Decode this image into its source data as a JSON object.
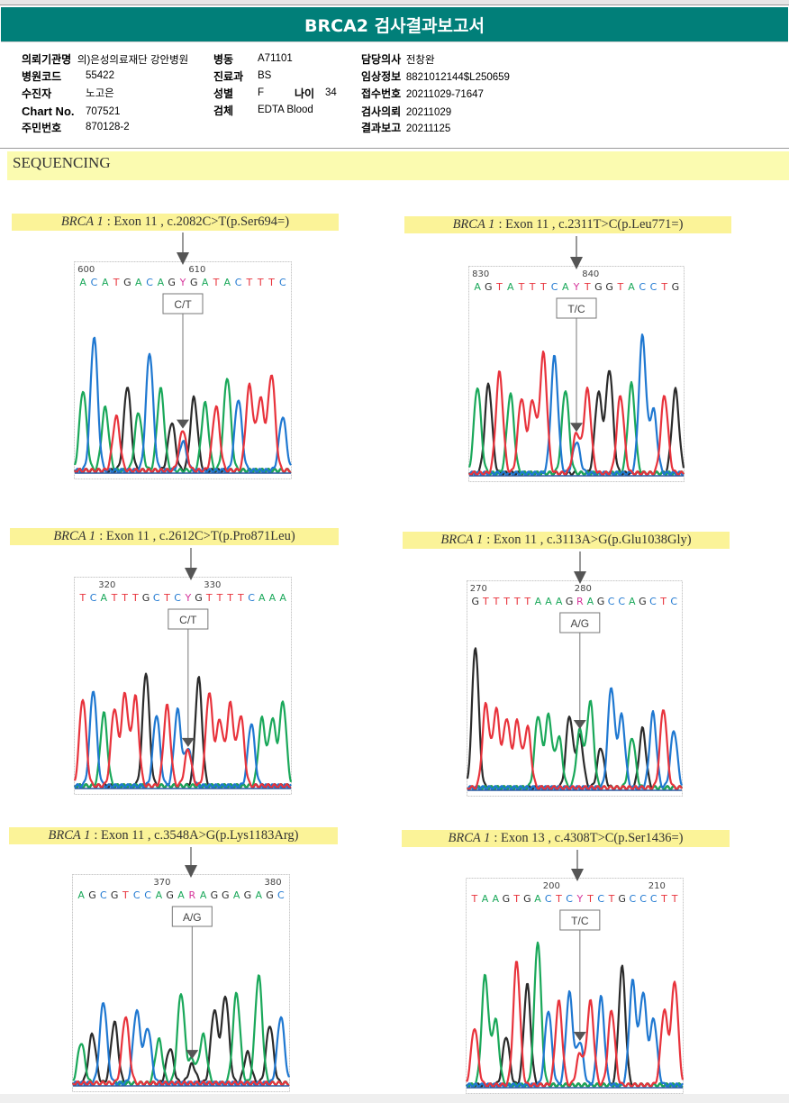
{
  "report": {
    "title": "BRCA2 검사결과보고서",
    "fields": {
      "institution": {
        "label": "의뢰기관명",
        "value": "의)은성의료재단 강안병원"
      },
      "ward": {
        "label": "병동",
        "value": "A71101"
      },
      "physician": {
        "label": "담당의사",
        "value": "전창완"
      },
      "hospital_code": {
        "label": "병원코드",
        "value": "55422"
      },
      "department": {
        "label": "진료과",
        "value": "BS"
      },
      "clinical_info": {
        "label": "임상정보",
        "value": "8821012144$L250659"
      },
      "patient": {
        "label": "수진자",
        "value": "노고은"
      },
      "sex": {
        "label": "성별",
        "value": "F"
      },
      "age": {
        "label": "나이",
        "value": "34"
      },
      "receipt_no": {
        "label": "접수번호",
        "value": "20211029-71647"
      },
      "chart_no": {
        "label": "Chart No.",
        "value": "707521"
      },
      "specimen": {
        "label": "검체",
        "value": "EDTA Blood"
      },
      "test_request": {
        "label": "검사의뢰",
        "value": "20211029"
      },
      "resident_no": {
        "label": "주민번호",
        "value": "870128-2"
      },
      "result_report": {
        "label": "결과보고",
        "value": "20211125"
      }
    }
  },
  "section": {
    "title": "SEQUENCING"
  },
  "colors": {
    "header_bg": "#017f79",
    "highlight": "#fbf398",
    "A": "#1aa85a",
    "C": "#1f78d1",
    "G": "#2b2b2b",
    "T": "#e8333c",
    "ambiguous": "#d6339a"
  },
  "chart_data": [
    {
      "type": "chromatogram",
      "gene": "BRCA 1",
      "label_rest": ": Exon 11 , c.2082C>T(p.Ser694=)",
      "exon": "Exon 11",
      "hgvs_c": "c.2082C>T",
      "hgvs_p": "p.Ser694=",
      "call": "C/T",
      "ticks": [
        {
          "label": "600",
          "index": 0
        },
        {
          "label": "610",
          "index": 10
        }
      ],
      "sequence": "ACATGACAGYGATACTTTC",
      "variant_index": 9,
      "peaks": [
        {
          "b": "A",
          "h": 0.55
        },
        {
          "b": "C",
          "h": 0.92
        },
        {
          "b": "A",
          "h": 0.43
        },
        {
          "b": "T",
          "h": 0.37
        },
        {
          "b": "G",
          "h": 0.58
        },
        {
          "b": "A",
          "h": 0.4
        },
        {
          "b": "C",
          "h": 0.81
        },
        {
          "b": "A",
          "h": 0.56
        },
        {
          "b": "G",
          "h": 0.33
        },
        {
          "b": "T",
          "h": 0.28,
          "b2": "C",
          "h2": 0.2
        },
        {
          "b": "G",
          "h": 0.5
        },
        {
          "b": "A",
          "h": 0.46
        },
        {
          "b": "T",
          "h": 0.44
        },
        {
          "b": "A",
          "h": 0.64
        },
        {
          "b": "C",
          "h": 0.49
        },
        {
          "b": "T",
          "h": 0.58
        },
        {
          "b": "T",
          "h": 0.49
        },
        {
          "b": "T",
          "h": 0.66
        },
        {
          "b": "C",
          "h": 0.37
        }
      ]
    },
    {
      "type": "chromatogram",
      "gene": "BRCA 1",
      "label_rest": ": Exon 11 , c.2311T>C(p.Leu771=)",
      "exon": "Exon 11",
      "hgvs_c": "c.2311T>C",
      "hgvs_p": "p.Leu771=",
      "call": "T/C",
      "ticks": [
        {
          "label": "830",
          "index": 0
        },
        {
          "label": "840",
          "index": 10
        }
      ],
      "sequence": "AGTATTTCAYTGGTACCTG",
      "variant_index": 9,
      "peaks": [
        {
          "b": "A",
          "h": 0.6
        },
        {
          "b": "G",
          "h": 0.62
        },
        {
          "b": "T",
          "h": 0.7
        },
        {
          "b": "A",
          "h": 0.55
        },
        {
          "b": "T",
          "h": 0.52
        },
        {
          "b": "T",
          "h": 0.5
        },
        {
          "b": "T",
          "h": 0.83
        },
        {
          "b": "C",
          "h": 0.81
        },
        {
          "b": "A",
          "h": 0.58
        },
        {
          "b": "C",
          "h": 0.22,
          "b2": "T",
          "h2": 0.28
        },
        {
          "b": "T",
          "h": 0.58
        },
        {
          "b": "G",
          "h": 0.56
        },
        {
          "b": "G",
          "h": 0.72
        },
        {
          "b": "T",
          "h": 0.54
        },
        {
          "b": "A",
          "h": 0.62
        },
        {
          "b": "C",
          "h": 0.95
        },
        {
          "b": "C",
          "h": 0.44
        },
        {
          "b": "T",
          "h": 0.54
        },
        {
          "b": "G",
          "h": 0.58
        }
      ]
    },
    {
      "type": "chromatogram",
      "gene": "BRCA 1",
      "label_rest": ": Exon 11 , c.2612C>T(p.Pro871Leu)",
      "exon": "Exon 11",
      "hgvs_c": "c.2612C>T",
      "hgvs_p": "p.Pro871Leu",
      "call": "C/T",
      "ticks": [
        {
          "label": "320",
          "index": 2
        },
        {
          "label": "330",
          "index": 12
        }
      ],
      "sequence": "TCATTTGCTCYGTTTTCAAA",
      "variant_index": 10,
      "peaks": [
        {
          "b": "T",
          "h": 0.6
        },
        {
          "b": "C",
          "h": 0.66
        },
        {
          "b": "A",
          "h": 0.5
        },
        {
          "b": "T",
          "h": 0.53
        },
        {
          "b": "T",
          "h": 0.63
        },
        {
          "b": "T",
          "h": 0.61
        },
        {
          "b": "G",
          "h": 0.78
        },
        {
          "b": "C",
          "h": 0.49
        },
        {
          "b": "T",
          "h": 0.55
        },
        {
          "b": "C",
          "h": 0.52
        },
        {
          "b": "C",
          "h": 0.26,
          "b2": "T",
          "h2": 0.25
        },
        {
          "b": "G",
          "h": 0.74
        },
        {
          "b": "T",
          "h": 0.64
        },
        {
          "b": "T",
          "h": 0.45
        },
        {
          "b": "T",
          "h": 0.56
        },
        {
          "b": "T",
          "h": 0.48
        },
        {
          "b": "C",
          "h": 0.43
        },
        {
          "b": "A",
          "h": 0.46
        },
        {
          "b": "A",
          "h": 0.46
        },
        {
          "b": "A",
          "h": 0.58
        }
      ]
    },
    {
      "type": "chromatogram",
      "gene": "BRCA 1",
      "label_rest": ": Exon 11 , c.3113A>G(p.Glu1038Gly)",
      "exon": "Exon 11",
      "hgvs_c": "c.3113A>G",
      "hgvs_p": "p.Glu1038Gly",
      "call": "A/G",
      "ticks": [
        {
          "label": "270",
          "index": 0
        },
        {
          "label": "280",
          "index": 10
        }
      ],
      "sequence": "GTTTTTAAAGRAGCCAGCTC",
      "variant_index": 10,
      "peaks": [
        {
          "b": "G",
          "h": 0.98
        },
        {
          "b": "T",
          "h": 0.58
        },
        {
          "b": "T",
          "h": 0.54
        },
        {
          "b": "T",
          "h": 0.48
        },
        {
          "b": "T",
          "h": 0.46
        },
        {
          "b": "T",
          "h": 0.42
        },
        {
          "b": "A",
          "h": 0.5
        },
        {
          "b": "A",
          "h": 0.5
        },
        {
          "b": "A",
          "h": 0.35
        },
        {
          "b": "G",
          "h": 0.5
        },
        {
          "b": "A",
          "h": 0.4,
          "b2": "G",
          "h2": 0.36
        },
        {
          "b": "A",
          "h": 0.6
        },
        {
          "b": "G",
          "h": 0.28
        },
        {
          "b": "C",
          "h": 0.7
        },
        {
          "b": "C",
          "h": 0.5
        },
        {
          "b": "A",
          "h": 0.35
        },
        {
          "b": "G",
          "h": 0.41
        },
        {
          "b": "C",
          "h": 0.52
        },
        {
          "b": "T",
          "h": 0.55
        },
        {
          "b": "C",
          "h": 0.4
        }
      ]
    },
    {
      "type": "chromatogram",
      "gene": "BRCA 1",
      "label_rest": ": Exon 11 , c.3548A>G(p.Lys1183Arg)",
      "exon": "Exon 11",
      "hgvs_c": "c.3548A>G",
      "hgvs_p": "p.Lys1183Arg",
      "call": "A/G",
      "ticks": [
        {
          "label": "370",
          "index": 7
        },
        {
          "label": "380",
          "index": 17
        }
      ],
      "sequence": "AGCGTCCAGARAGGAGAGC",
      "variant_index": 10,
      "peaks": [
        {
          "b": "A",
          "h": 0.28
        },
        {
          "b": "G",
          "h": 0.34
        },
        {
          "b": "C",
          "h": 0.56
        },
        {
          "b": "G",
          "h": 0.42
        },
        {
          "b": "T",
          "h": 0.46
        },
        {
          "b": "C",
          "h": 0.5
        },
        {
          "b": "C",
          "h": 0.38
        },
        {
          "b": "A",
          "h": 0.3
        },
        {
          "b": "G",
          "h": 0.24
        },
        {
          "b": "A",
          "h": 0.62
        },
        {
          "b": "A",
          "h": 0.16,
          "b2": "G",
          "h2": 0.13
        },
        {
          "b": "A",
          "h": 0.33
        },
        {
          "b": "G",
          "h": 0.5
        },
        {
          "b": "G",
          "h": 0.6
        },
        {
          "b": "A",
          "h": 0.62
        },
        {
          "b": "G",
          "h": 0.21
        },
        {
          "b": "A",
          "h": 0.74
        },
        {
          "b": "G",
          "h": 0.4
        },
        {
          "b": "C",
          "h": 0.46
        }
      ]
    },
    {
      "type": "chromatogram",
      "gene": "BRCA 1",
      "label_rest": ": Exon 13 , c.4308T>C(p.Ser1436=)",
      "exon": "Exon 13",
      "hgvs_c": "c.4308T>C",
      "hgvs_p": "p.Ser1436=",
      "call": "T/C",
      "ticks": [
        {
          "label": "200",
          "index": 7
        },
        {
          "label": "210",
          "index": 17
        }
      ],
      "sequence": "TAAGTGACTCYTCTGCCCTT",
      "variant_index": 10,
      "peaks": [
        {
          "b": "T",
          "h": 0.4
        },
        {
          "b": "A",
          "h": 0.76
        },
        {
          "b": "A",
          "h": 0.45
        },
        {
          "b": "G",
          "h": 0.34
        },
        {
          "b": "T",
          "h": 0.86
        },
        {
          "b": "G",
          "h": 0.7
        },
        {
          "b": "A",
          "h": 1.0
        },
        {
          "b": "C",
          "h": 0.52
        },
        {
          "b": "T",
          "h": 0.58
        },
        {
          "b": "C",
          "h": 0.64
        },
        {
          "b": "C",
          "h": 0.3,
          "b2": "T",
          "h2": 0.22
        },
        {
          "b": "T",
          "h": 0.58
        },
        {
          "b": "C",
          "h": 0.61
        },
        {
          "b": "T",
          "h": 0.52
        },
        {
          "b": "G",
          "h": 0.82
        },
        {
          "b": "C",
          "h": 0.72
        },
        {
          "b": "C",
          "h": 0.64
        },
        {
          "b": "C",
          "h": 0.46
        },
        {
          "b": "T",
          "h": 0.52
        },
        {
          "b": "T",
          "h": 0.72
        }
      ]
    }
  ]
}
